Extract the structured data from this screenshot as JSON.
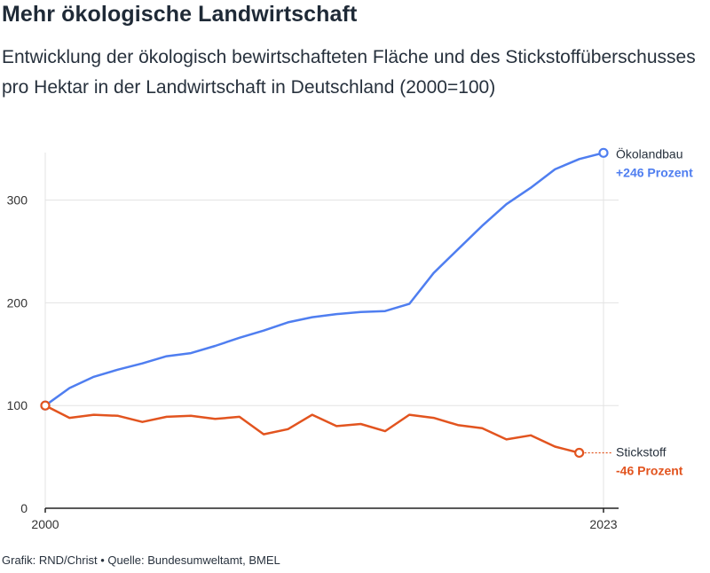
{
  "title": "Mehr ökologische Landwirtschaft",
  "subtitle": "Entwicklung der ökologisch bewirtschafteten Fläche und des Stickstoffüberschusses pro Hektar in der Landwirtschaft in Deutschland (2000=100)",
  "footer": "Grafik: RND/Christ • Quelle: Bundesumweltamt, BMEL",
  "colors": {
    "oeko": "#4f7ef0",
    "stick": "#e2541f",
    "grid": "#e3e3e3",
    "axis": "#222222"
  },
  "chart_data": {
    "type": "line",
    "x_tick_labels": [
      "2000",
      "2023"
    ],
    "xlim": [
      2000,
      2023
    ],
    "ylim": [
      0,
      340
    ],
    "y_ticks": [
      0,
      100,
      200,
      300
    ],
    "grid": true,
    "series": [
      {
        "name": "Ökolandbau",
        "annotation": "+246 Prozent",
        "x": [
          2000,
          2001,
          2002,
          2003,
          2004,
          2005,
          2006,
          2007,
          2008,
          2009,
          2010,
          2011,
          2012,
          2013,
          2014,
          2015,
          2016,
          2017,
          2018,
          2019,
          2020,
          2021,
          2022,
          2023
        ],
        "values": [
          100,
          117,
          128,
          135,
          141,
          148,
          151,
          158,
          166,
          173,
          181,
          186,
          189,
          191,
          192,
          199,
          229,
          252,
          275,
          296,
          312,
          330,
          340,
          346
        ]
      },
      {
        "name": "Stickstoff",
        "annotation": "-46 Prozent",
        "x": [
          2000,
          2001,
          2002,
          2003,
          2004,
          2005,
          2006,
          2007,
          2008,
          2009,
          2010,
          2011,
          2012,
          2013,
          2014,
          2015,
          2016,
          2017,
          2018,
          2019,
          2020,
          2021,
          2022
        ],
        "values": [
          100,
          88,
          91,
          90,
          84,
          89,
          90,
          87,
          89,
          72,
          77,
          91,
          80,
          82,
          75,
          91,
          88,
          81,
          78,
          67,
          71,
          60,
          54
        ]
      }
    ]
  }
}
